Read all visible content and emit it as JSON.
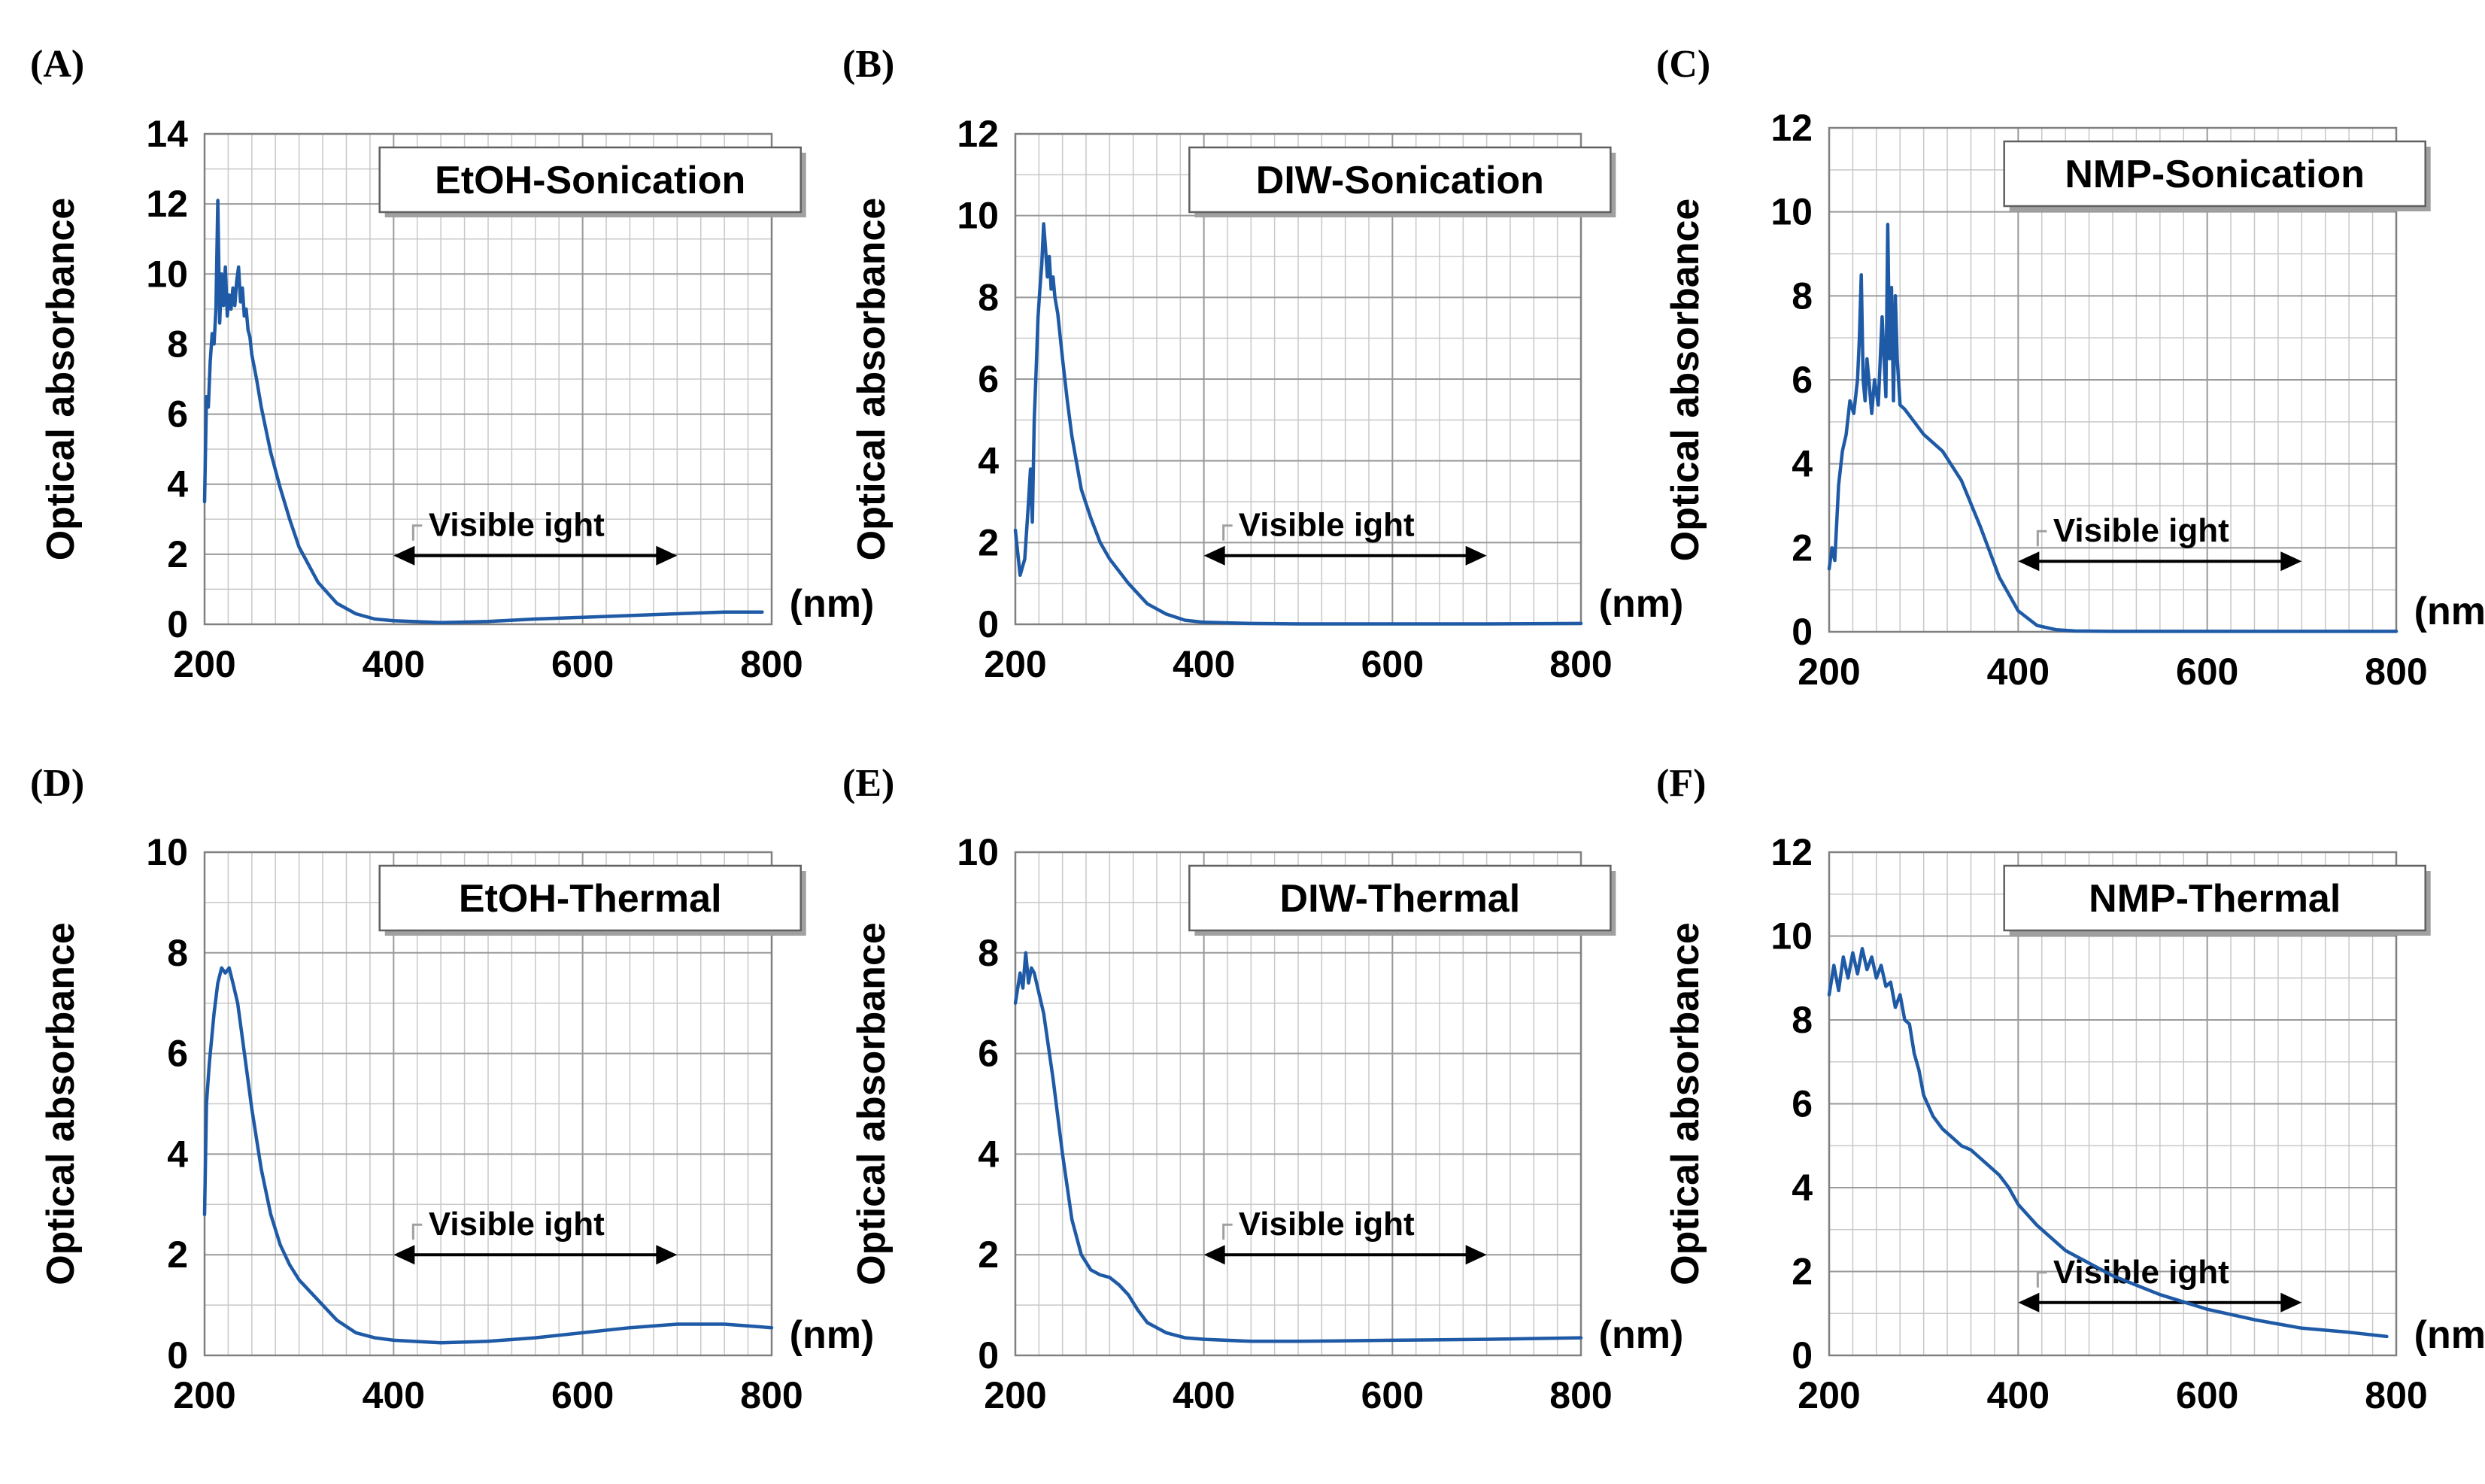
{
  "colors": {
    "series": "#1f5aa6",
    "annotation": "#000000"
  },
  "chart_data": [
    {
      "panel": "(A)",
      "type": "line",
      "title": "EtOH-Sonication",
      "xlabel": "(nm)",
      "ylabel": "Optical absorbance",
      "xlim": [
        200,
        800
      ],
      "ylim": [
        0,
        14
      ],
      "xticks": [
        "200",
        "400",
        "600",
        "800"
      ],
      "yticks": [
        "0",
        "2",
        "4",
        "6",
        "8",
        "10",
        "12",
        "14"
      ],
      "annotation": {
        "text": "Visible ight",
        "from": 400,
        "to": 700
      },
      "x": [
        200,
        202,
        204,
        206,
        208,
        210,
        212,
        214,
        216,
        218,
        220,
        222,
        224,
        226,
        228,
        230,
        232,
        234,
        236,
        238,
        240,
        242,
        244,
        246,
        248,
        250,
        255,
        260,
        270,
        280,
        290,
        300,
        320,
        340,
        360,
        380,
        400,
        420,
        450,
        500,
        550,
        600,
        650,
        700,
        750,
        790
      ],
      "series": [
        {
          "name": "EtOH-Sonication",
          "values": [
            3.5,
            6.5,
            6.2,
            7.5,
            8.3,
            8.0,
            9.0,
            12.1,
            8.6,
            10.0,
            9.1,
            10.2,
            8.8,
            9.4,
            9.0,
            9.6,
            9.1,
            9.8,
            10.2,
            9.2,
            9.6,
            8.8,
            9.0,
            8.4,
            8.2,
            7.7,
            7.0,
            6.2,
            4.9,
            3.9,
            3.0,
            2.2,
            1.2,
            0.6,
            0.3,
            0.15,
            0.1,
            0.08,
            0.05,
            0.08,
            0.15,
            0.2,
            0.25,
            0.3,
            0.35,
            0.35
          ]
        }
      ]
    },
    {
      "panel": "(B)",
      "type": "line",
      "title": "DIW-Sonication",
      "xlabel": "(nm)",
      "ylabel": "Optical absorbance",
      "xlim": [
        200,
        800
      ],
      "ylim": [
        0,
        12
      ],
      "xticks": [
        "200",
        "400",
        "600",
        "800"
      ],
      "yticks": [
        "0",
        "2",
        "4",
        "6",
        "8",
        "10",
        "12"
      ],
      "annotation": {
        "text": "Visible ight",
        "from": 400,
        "to": 700
      },
      "x": [
        200,
        205,
        210,
        214,
        216,
        218,
        220,
        222,
        224,
        226,
        228,
        230,
        232,
        234,
        236,
        238,
        240,
        242,
        245,
        250,
        255,
        260,
        270,
        280,
        290,
        300,
        320,
        340,
        360,
        380,
        400,
        450,
        500,
        600,
        700,
        800
      ],
      "series": [
        {
          "name": "DIW-Sonication",
          "values": [
            2.3,
            1.2,
            1.6,
            3.0,
            3.8,
            2.5,
            5.0,
            6.2,
            7.5,
            8.2,
            8.8,
            9.8,
            9.2,
            8.5,
            9.0,
            8.2,
            8.5,
            8.0,
            7.6,
            6.5,
            5.5,
            4.6,
            3.3,
            2.6,
            2.0,
            1.6,
            1.0,
            0.5,
            0.25,
            0.1,
            0.05,
            0.02,
            0.01,
            0.01,
            0.01,
            0.02
          ]
        }
      ]
    },
    {
      "panel": "(C)",
      "type": "line",
      "title": "NMP-Sonication",
      "xlabel": "(nm)",
      "ylabel": "Optical absorbance",
      "xlim": [
        200,
        800
      ],
      "ylim": [
        0,
        12
      ],
      "xticks": [
        "200",
        "400",
        "600",
        "800"
      ],
      "yticks": [
        "0",
        "2",
        "4",
        "6",
        "8",
        "10",
        "12"
      ],
      "annotation": {
        "text": "Visible ight",
        "from": 400,
        "to": 700
      },
      "x": [
        200,
        203,
        206,
        210,
        214,
        218,
        222,
        226,
        230,
        232,
        234,
        236,
        238,
        240,
        242,
        245,
        248,
        252,
        256,
        260,
        262,
        264,
        266,
        268,
        270,
        272,
        275,
        280,
        290,
        300,
        320,
        340,
        360,
        380,
        400,
        420,
        440,
        460,
        500,
        600,
        700,
        800
      ],
      "series": [
        {
          "name": "NMP-Sonication",
          "values": [
            1.5,
            2.0,
            1.7,
            3.5,
            4.3,
            4.7,
            5.5,
            5.2,
            6.0,
            7.0,
            8.5,
            6.0,
            5.5,
            6.5,
            6.0,
            5.2,
            6.0,
            5.4,
            7.5,
            5.6,
            9.7,
            6.5,
            8.2,
            5.5,
            8.0,
            6.5,
            5.4,
            5.3,
            5.0,
            4.7,
            4.3,
            3.6,
            2.5,
            1.3,
            0.5,
            0.15,
            0.05,
            0.02,
            0.01,
            0.01,
            0.01,
            0.01
          ]
        }
      ]
    },
    {
      "panel": "(D)",
      "type": "line",
      "title": "EtOH-Thermal",
      "xlabel": "(nm)",
      "ylabel": "Optical absorbance",
      "xlim": [
        200,
        800
      ],
      "ylim": [
        0,
        10
      ],
      "xticks": [
        "200",
        "400",
        "600",
        "800"
      ],
      "yticks": [
        "0",
        "2",
        "4",
        "6",
        "8",
        "10"
      ],
      "annotation": {
        "text": "Visible ight",
        "from": 400,
        "to": 700
      },
      "x": [
        200,
        202,
        205,
        210,
        214,
        218,
        222,
        226,
        230,
        235,
        240,
        250,
        260,
        270,
        280,
        290,
        300,
        320,
        340,
        360,
        380,
        400,
        450,
        500,
        550,
        600,
        650,
        700,
        750,
        800
      ],
      "series": [
        {
          "name": "EtOH-Thermal",
          "values": [
            2.8,
            5.0,
            5.8,
            6.8,
            7.4,
            7.7,
            7.6,
            7.7,
            7.4,
            7.0,
            6.3,
            4.9,
            3.7,
            2.8,
            2.2,
            1.8,
            1.5,
            1.1,
            0.7,
            0.45,
            0.35,
            0.3,
            0.25,
            0.28,
            0.35,
            0.45,
            0.55,
            0.62,
            0.62,
            0.55
          ]
        }
      ]
    },
    {
      "panel": "(E)",
      "type": "line",
      "title": "DIW-Thermal",
      "xlabel": "(nm)",
      "ylabel": "Optical absorbance",
      "xlim": [
        200,
        800
      ],
      "ylim": [
        0,
        10
      ],
      "xticks": [
        "200",
        "400",
        "600",
        "800"
      ],
      "yticks": [
        "0",
        "2",
        "4",
        "6",
        "8",
        "10"
      ],
      "annotation": {
        "text": "Visible ight",
        "from": 400,
        "to": 700
      },
      "x": [
        200,
        205,
        208,
        211,
        214,
        217,
        220,
        225,
        230,
        240,
        250,
        260,
        270,
        280,
        290,
        300,
        310,
        320,
        330,
        340,
        360,
        380,
        400,
        450,
        500,
        600,
        700,
        800
      ],
      "series": [
        {
          "name": "DIW-Thermal",
          "values": [
            7.0,
            7.6,
            7.3,
            8.0,
            7.4,
            7.7,
            7.6,
            7.2,
            6.8,
            5.5,
            4.0,
            2.7,
            2.0,
            1.7,
            1.6,
            1.55,
            1.4,
            1.2,
            0.9,
            0.65,
            0.45,
            0.35,
            0.32,
            0.28,
            0.28,
            0.3,
            0.32,
            0.35
          ]
        }
      ]
    },
    {
      "panel": "(F)",
      "type": "line",
      "title": "NMP-Thermal",
      "xlabel": "(nm)",
      "ylabel": "Optical absorbance",
      "xlim": [
        200,
        800
      ],
      "ylim": [
        0,
        12
      ],
      "xticks": [
        "200",
        "400",
        "600",
        "800"
      ],
      "yticks": [
        "0",
        "2",
        "4",
        "6",
        "8",
        "10",
        "12"
      ],
      "annotation": {
        "text": "Visible ight",
        "from": 400,
        "to": 700
      },
      "x": [
        200,
        205,
        210,
        215,
        220,
        225,
        230,
        235,
        240,
        245,
        250,
        255,
        260,
        265,
        270,
        275,
        280,
        285,
        290,
        295,
        300,
        310,
        320,
        330,
        340,
        350,
        360,
        370,
        380,
        390,
        400,
        420,
        450,
        500,
        550,
        600,
        650,
        700,
        750,
        790
      ],
      "series": [
        {
          "name": "NMP-Thermal",
          "values": [
            8.6,
            9.3,
            8.7,
            9.5,
            9.0,
            9.6,
            9.1,
            9.7,
            9.2,
            9.5,
            9.0,
            9.3,
            8.8,
            8.9,
            8.3,
            8.6,
            8.0,
            7.9,
            7.2,
            6.8,
            6.2,
            5.7,
            5.4,
            5.2,
            5.0,
            4.9,
            4.7,
            4.5,
            4.3,
            4.0,
            3.6,
            3.1,
            2.5,
            1.9,
            1.45,
            1.1,
            0.85,
            0.65,
            0.55,
            0.45
          ]
        }
      ]
    }
  ]
}
